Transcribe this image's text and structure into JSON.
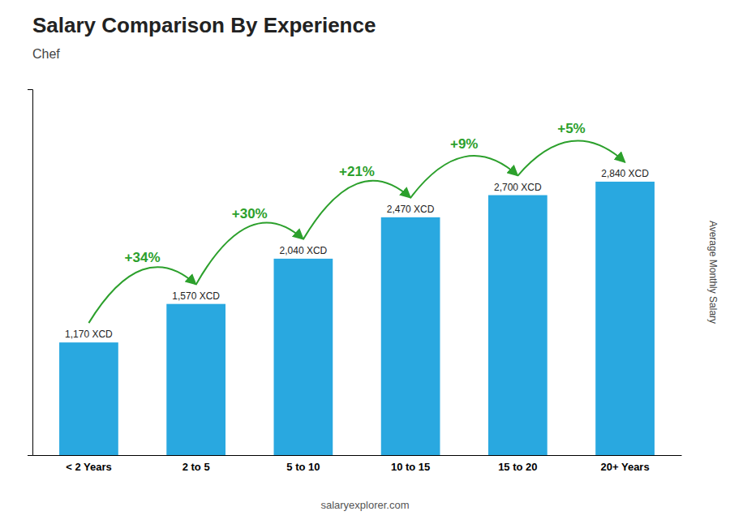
{
  "chart_data": {
    "type": "bar",
    "title": "Salary Comparison By Experience",
    "subtitle": "Chef",
    "categories": [
      "< 2 Years",
      "2 to 5",
      "5 to 10",
      "10 to 15",
      "15 to 20",
      "20+ Years"
    ],
    "values": [
      1170,
      1570,
      2040,
      2470,
      2700,
      2840
    ],
    "value_labels": [
      "1,170 XCD",
      "1,570 XCD",
      "2,040 XCD",
      "2,470 XCD",
      "2,700 XCD",
      "2,840 XCD"
    ],
    "data_labels": true,
    "color": "#29A8E0",
    "ylabel": "Average Monthly Salary",
    "ylim": [
      0,
      3800
    ],
    "yticks": [],
    "tick_labels": "x",
    "annotations": [
      "+34%",
      "+30%",
      "+21%",
      "+9%",
      "+5%"
    ],
    "footer": "salaryexplorer.com"
  }
}
